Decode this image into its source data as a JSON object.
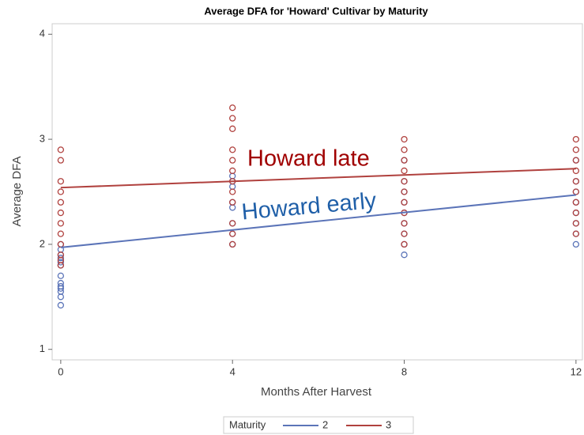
{
  "chart_data": {
    "type": "scatter",
    "title": "Average DFA for 'Howard' Cultivar by Maturity",
    "x_label": "Months After Harvest",
    "y_label": "Average DFA",
    "xlim": [
      -0.2,
      12.15
    ],
    "ylim": [
      0.9,
      4.1
    ],
    "xticks": [
      0,
      4,
      8,
      12
    ],
    "yticks": [
      1,
      2,
      3,
      4
    ],
    "legend_title": "Maturity",
    "series": [
      {
        "name": "2",
        "color": "#5b74b8",
        "x": [
          0,
          0,
          0,
          0,
          0,
          0,
          0,
          0,
          0,
          0,
          0,
          0,
          0,
          4,
          4,
          4,
          4,
          4,
          4,
          4,
          4,
          8,
          8,
          8,
          8,
          8,
          8,
          8,
          8,
          8,
          12,
          12,
          12,
          12,
          12,
          12,
          12,
          12
        ],
        "values": [
          1.42,
          1.5,
          1.55,
          1.58,
          1.6,
          1.63,
          1.7,
          1.8,
          1.83,
          1.87,
          1.9,
          1.95,
          2.0,
          2.0,
          2.1,
          2.2,
          2.35,
          2.4,
          2.55,
          2.6,
          2.65,
          1.9,
          2.0,
          2.1,
          2.2,
          2.3,
          2.4,
          2.5,
          2.6,
          2.8,
          2.0,
          2.1,
          2.2,
          2.3,
          2.4,
          2.5,
          2.6,
          2.8
        ],
        "fit_x": [
          0,
          12
        ],
        "fit_values": [
          1.97,
          2.47
        ]
      },
      {
        "name": "3",
        "color": "#b0413e",
        "x": [
          0,
          0,
          0,
          0,
          0,
          0,
          0,
          0,
          0,
          0,
          0,
          0,
          4,
          4,
          4,
          4,
          4,
          4,
          4,
          4,
          4,
          4,
          4,
          4,
          8,
          8,
          8,
          8,
          8,
          8,
          8,
          8,
          8,
          8,
          8,
          12,
          12,
          12,
          12,
          12,
          12,
          12,
          12,
          12,
          12
        ],
        "values": [
          1.8,
          1.85,
          1.9,
          2.0,
          2.1,
          2.2,
          2.3,
          2.4,
          2.5,
          2.6,
          2.8,
          2.9,
          2.0,
          2.1,
          2.2,
          2.4,
          2.5,
          2.6,
          2.7,
          2.8,
          2.9,
          3.1,
          3.2,
          3.3,
          2.0,
          2.1,
          2.2,
          2.3,
          2.4,
          2.5,
          2.6,
          2.7,
          2.8,
          2.9,
          3.0,
          2.1,
          2.2,
          2.3,
          2.4,
          2.5,
          2.6,
          2.7,
          2.8,
          2.9,
          3.0
        ],
        "fit_x": [
          0,
          12
        ],
        "fit_values": [
          2.54,
          2.72
        ]
      }
    ],
    "annotations": [
      {
        "text": "Howard late",
        "color": "#a00000"
      },
      {
        "text": "Howard early",
        "color": "#1f5fa8"
      }
    ]
  }
}
